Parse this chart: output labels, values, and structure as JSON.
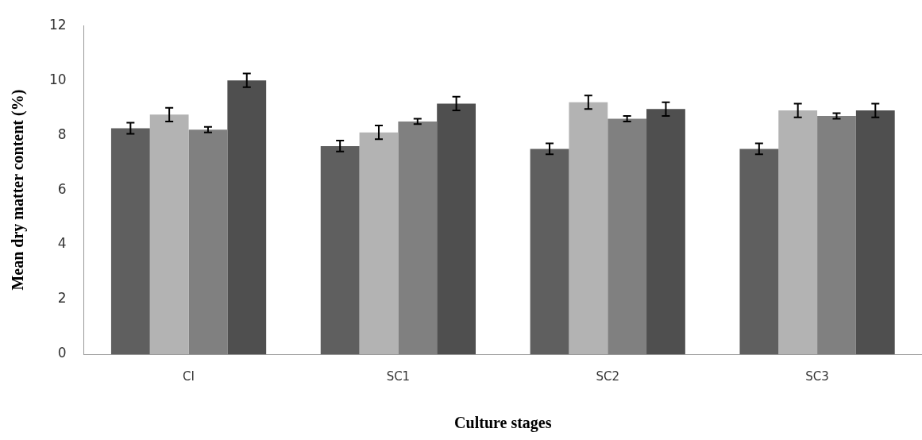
{
  "chart_data": {
    "type": "bar",
    "xlabel": "Culture stages",
    "ylabel": "Mean dry matter content (%)",
    "categories": [
      "CI",
      "SC1",
      "SC2",
      "SC3"
    ],
    "series": [
      {
        "color": "#5f5f5f",
        "values": [
          8.25,
          7.6,
          7.5,
          7.5
        ],
        "errors": [
          0.2,
          0.2,
          0.2,
          0.2
        ]
      },
      {
        "color": "#b3b3b3",
        "values": [
          8.75,
          8.1,
          9.2,
          8.9
        ],
        "errors": [
          0.25,
          0.25,
          0.25,
          0.25
        ]
      },
      {
        "color": "#808080",
        "values": [
          8.2,
          8.5,
          8.6,
          8.7
        ],
        "errors": [
          0.1,
          0.1,
          0.1,
          0.1
        ]
      },
      {
        "color": "#4f4f4f",
        "values": [
          10.0,
          9.15,
          8.95,
          8.9
        ],
        "errors": [
          0.25,
          0.25,
          0.25,
          0.25
        ]
      }
    ],
    "ylim": [
      0,
      12
    ],
    "yticks": [
      0,
      2,
      4,
      6,
      8,
      10,
      12
    ],
    "grid": false,
    "legend": false
  }
}
